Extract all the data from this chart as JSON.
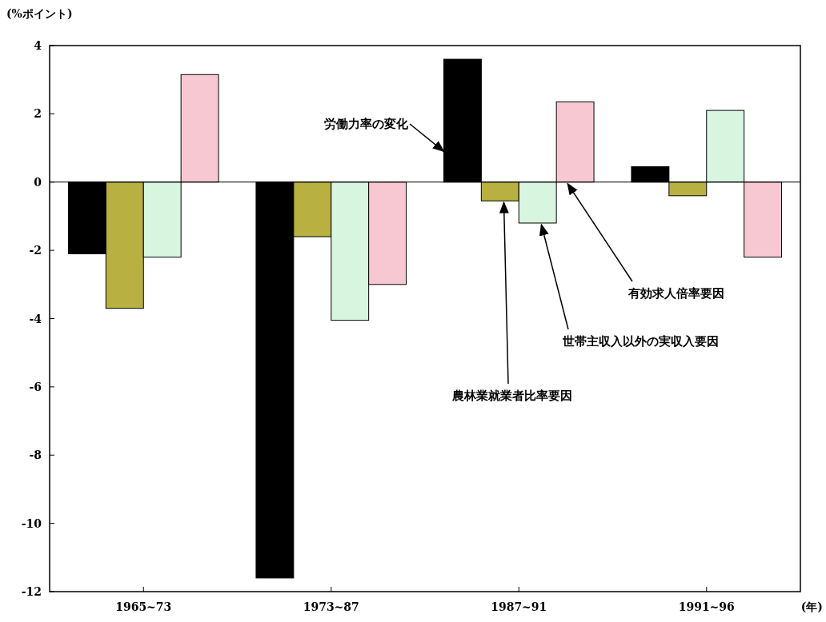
{
  "chart_data": {
    "type": "bar",
    "ylabel": "(%ポイント)",
    "xlabel": "(年)",
    "categories": [
      "1965~73",
      "1973~87",
      "1987~91",
      "1991~96"
    ],
    "series": [
      {
        "name": "労働力率の変化",
        "color": "#000000",
        "values": [
          -2.1,
          -11.6,
          3.6,
          0.45
        ]
      },
      {
        "name": "農林業就業者比率要因",
        "color": "#b8b040",
        "values": [
          -3.7,
          -1.6,
          -0.55,
          -0.4
        ]
      },
      {
        "name": "世帯主収入以外の実収入要因",
        "color": "#d8f5e0",
        "values": [
          -2.2,
          -4.05,
          -1.2,
          2.1
        ]
      },
      {
        "name": "有効求人倍率要因",
        "color": "#f8c8d2",
        "values": [
          3.15,
          -3.0,
          2.35,
          -2.2
        ]
      }
    ],
    "ylim": [
      -12,
      4
    ],
    "yticks": [
      -12,
      -10,
      -8,
      -6,
      -4,
      -2,
      0,
      2,
      4
    ],
    "ref_lines": [
      {
        "axis": "y",
        "value": 0
      }
    ],
    "grid": false
  }
}
